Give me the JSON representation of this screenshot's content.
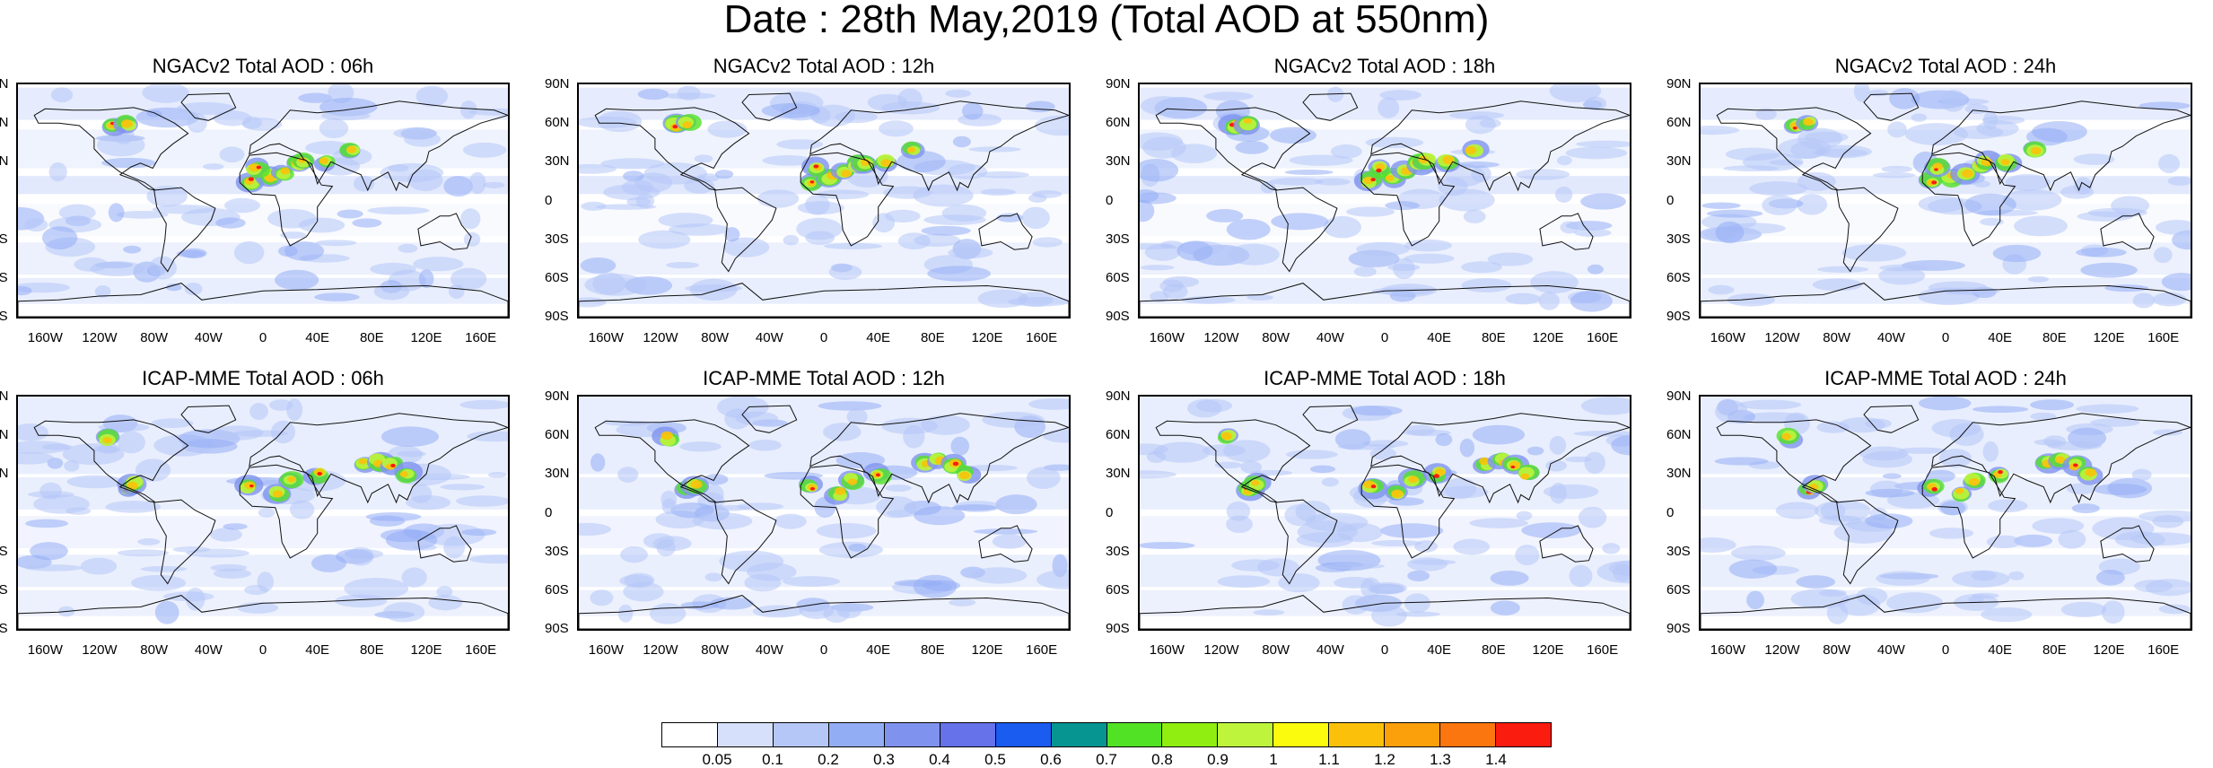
{
  "title": "Date : 28th May,2019 (Total AOD at 550nm)",
  "panels": [
    {
      "title": "NGACv2 Total AOD : 06h"
    },
    {
      "title": "NGACv2 Total AOD : 12h"
    },
    {
      "title": "NGACv2 Total AOD : 18h"
    },
    {
      "title": "NGACv2 Total AOD : 24h"
    },
    {
      "title": "ICAP-MME Total AOD : 06h"
    },
    {
      "title": "ICAP-MME Total AOD : 12h"
    },
    {
      "title": "ICAP-MME Total AOD : 18h"
    },
    {
      "title": "ICAP-MME Total AOD : 24h"
    }
  ],
  "lat_labels": [
    "90N",
    "60N",
    "30N",
    "0",
    "30S",
    "60S",
    "90S"
  ],
  "lon_labels": [
    "160W",
    "120W",
    "80W",
    "40W",
    "0",
    "40E",
    "80E",
    "120E",
    "160E"
  ],
  "colorbar": {
    "levels": [
      "0.05",
      "0.1",
      "0.2",
      "0.3",
      "0.4",
      "0.5",
      "0.6",
      "0.7",
      "0.8",
      "0.9",
      "1",
      "1.1",
      "1.2",
      "1.3",
      "1.4"
    ],
    "colors": [
      "#ffffff",
      "#d6e0fb",
      "#b5c7f7",
      "#93adf5",
      "#7f93ee",
      "#6572e9",
      "#1a5bf0",
      "#079591",
      "#52e225",
      "#90ee10",
      "#bef43b",
      "#fbfb0e",
      "#fbc10a",
      "#fb9f0b",
      "#fb760e",
      "#f91c0f"
    ]
  }
}
